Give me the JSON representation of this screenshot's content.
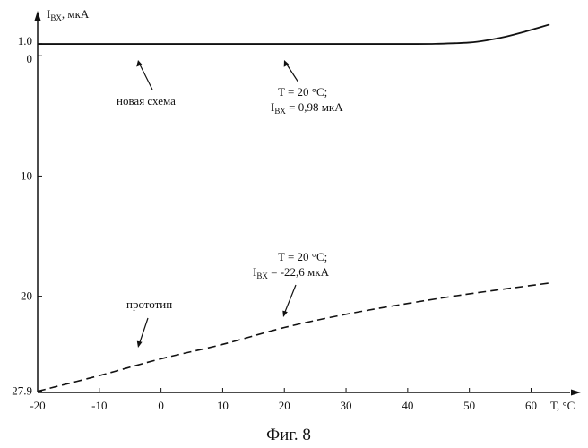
{
  "chart_data": {
    "type": "line",
    "title": "",
    "caption": "Фиг. 8",
    "ylabel_main": "I",
    "ylabel_sub": "BX",
    "ylabel_unit": ", мкА",
    "xlabel": "T, °C",
    "xlim": [
      -20,
      64
    ],
    "ylim": [
      -28,
      2.4
    ],
    "x_ticks": [
      {
        "value": -20,
        "label": "-20"
      },
      {
        "value": -10,
        "label": "-10"
      },
      {
        "value": 0,
        "label": "0"
      },
      {
        "value": 10,
        "label": "10"
      },
      {
        "value": 20,
        "label": "20"
      },
      {
        "value": 30,
        "label": "30"
      },
      {
        "value": 40,
        "label": "40"
      },
      {
        "value": 50,
        "label": "50"
      },
      {
        "value": 60,
        "label": "60"
      }
    ],
    "y_ticks": [
      {
        "value": 1.0,
        "label": "1.0"
      },
      {
        "value": 0,
        "label": "0"
      },
      {
        "value": -10,
        "label": "-10"
      },
      {
        "value": -20,
        "label": "-20"
      },
      {
        "value": -27.9,
        "label": "-27.9"
      }
    ],
    "series": [
      {
        "name": "новая схема",
        "style": "solid",
        "x": [
          -20,
          0,
          20,
          40,
          45,
          50,
          53,
          56,
          59,
          61,
          63
        ],
        "y": [
          0.98,
          0.98,
          0.98,
          0.98,
          1.0,
          1.1,
          1.3,
          1.6,
          2.0,
          2.3,
          2.6
        ]
      },
      {
        "name": "прототип",
        "style": "dashed",
        "x": [
          -20,
          -10,
          0,
          10,
          20,
          30,
          40,
          50,
          63
        ],
        "y": [
          -27.9,
          -26.6,
          -25.2,
          -24.0,
          -22.6,
          -21.5,
          -20.6,
          -19.8,
          -18.9
        ]
      }
    ],
    "annotations": [
      {
        "line1": "T = 20 °C;",
        "line2_main": "I",
        "line2_sub": "BX",
        "line2_rest": " = 0,98 мкА"
      },
      {
        "line1": "T = 20 °C;",
        "line2_main": "I",
        "line2_sub": "BX",
        "line2_rest": " = -22,6 мкА"
      }
    ],
    "series_labels": [
      "новая схема",
      "прототип"
    ]
  }
}
